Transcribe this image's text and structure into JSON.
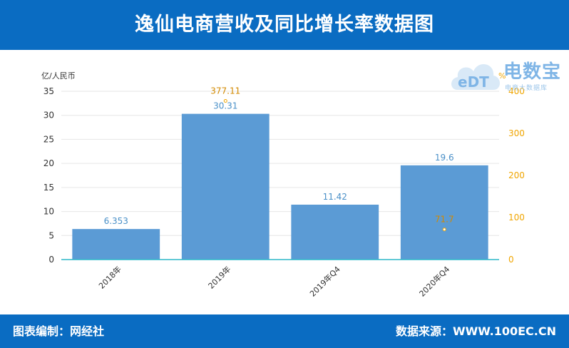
{
  "header": {
    "title": "逸仙电商营收及同比增长率数据图"
  },
  "footer": {
    "editor": "图表编制：网经社",
    "source": "数据来源：WWW.100EC.CN"
  },
  "watermark": {
    "name": "电数宝",
    "sub": "电商大数据库"
  },
  "colors": {
    "header_bg": "#0a6cc2",
    "bar": "#5b9bd5",
    "line": "#f0a500",
    "bar_label": "#4a90c8",
    "line_label": "#d38a00"
  },
  "chart_data": {
    "type": "bar",
    "categories": [
      "2018年",
      "2019年",
      "2019年Q4",
      "2020年Q4"
    ],
    "series": [
      {
        "values": [
          6.353,
          30.31,
          11.42,
          19.6
        ],
        "axis": "left"
      },
      {
        "values": [
          null,
          377.11,
          null,
          71.7
        ],
        "axis": "right",
        "type": "scatter"
      }
    ],
    "ylabel": "亿/人民币",
    "y2label": "%",
    "ylim": [
      0,
      35
    ],
    "y2lim": [
      0,
      400
    ],
    "yticks": [
      0,
      5,
      10,
      15,
      20,
      25,
      30,
      35
    ],
    "y2ticks": [
      0,
      100,
      200,
      300,
      400
    ],
    "grid": true
  }
}
